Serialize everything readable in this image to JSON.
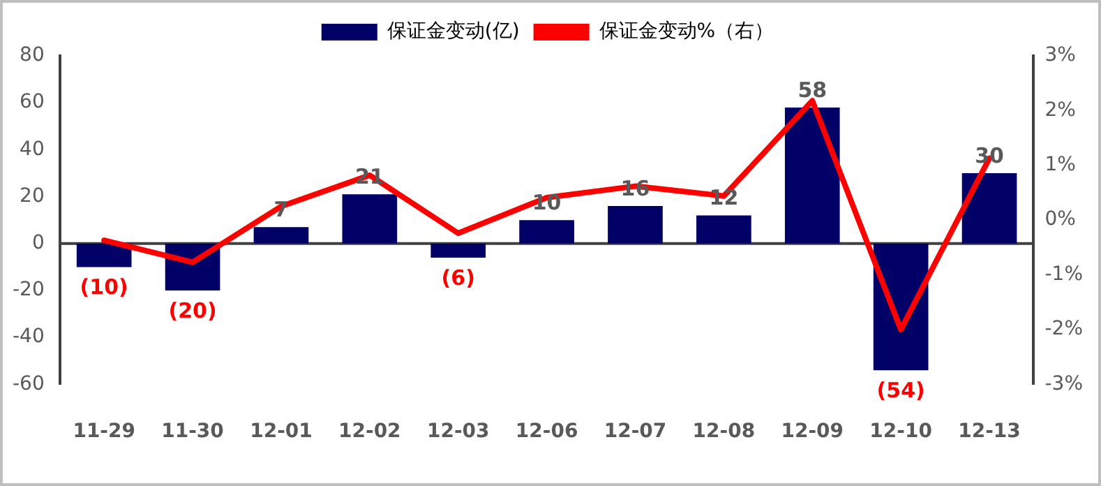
{
  "chart_data": {
    "type": "bar",
    "categories": [
      "11-29",
      "11-30",
      "12-01",
      "12-02",
      "12-03",
      "12-06",
      "12-07",
      "12-08",
      "12-09",
      "12-10",
      "12-13"
    ],
    "series": [
      {
        "name": "保证金变动(亿)",
        "color": "#000066",
        "values": [
          -10,
          -20,
          7,
          21,
          -6,
          10,
          16,
          12,
          58,
          -54,
          30
        ],
        "value_labels": [
          "(10)",
          "(20)",
          "7",
          "21",
          "(6)",
          "10",
          "16",
          "12",
          "58",
          "(54)",
          "30"
        ]
      },
      {
        "name": "保证金变动%（右）",
        "type": "line",
        "axis": "y2",
        "color": "#ff0000",
        "values": [
          -0.37,
          -0.77,
          0.25,
          0.82,
          -0.24,
          0.41,
          0.62,
          0.44,
          2.18,
          -2.0,
          1.13
        ]
      }
    ],
    "ylim": [
      -60,
      80
    ],
    "yticks": [
      -60,
      -40,
      -20,
      0,
      20,
      40,
      60,
      80
    ],
    "y2lim": [
      -3,
      3
    ],
    "y2ticks": [
      {
        "value": -3,
        "label": "-3%"
      },
      {
        "value": -2,
        "label": "-2%"
      },
      {
        "value": -1,
        "label": "-1%"
      },
      {
        "value": 0,
        "label": "0%"
      },
      {
        "value": 1,
        "label": "1%"
      },
      {
        "value": 2,
        "label": "2%"
      },
      {
        "value": 3,
        "label": "3%"
      }
    ],
    "grid": false,
    "ref_lines": [
      {
        "axis": "y",
        "value": 0,
        "color": "#404040"
      }
    ],
    "legend": "top",
    "marker": "none",
    "line_style": "solid"
  }
}
